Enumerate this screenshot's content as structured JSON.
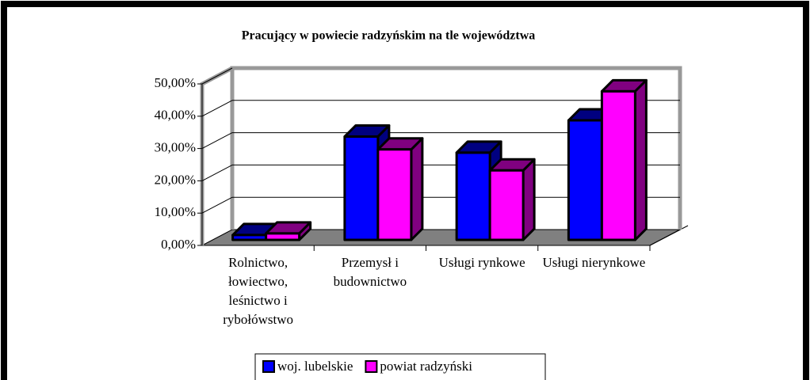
{
  "chart_data": {
    "type": "bar3d",
    "title": "Pracujący w powiecie radzyńskim na tle województwa",
    "categories": [
      "Rolnictwo, łowiectwo, leśnictwo i rybołówstwo",
      "Przemysł i budownictwo",
      "Usługi rynkowe",
      "Usługi nierynkowe"
    ],
    "series": [
      {
        "name": "woj. lubelskie",
        "color": "#0000ff",
        "side_color": "#000080",
        "values": [
          1.5,
          32,
          27,
          37
        ]
      },
      {
        "name": "powiat radzyński",
        "color": "#ff00ff",
        "side_color": "#800080",
        "values": [
          2,
          28,
          21.5,
          46
        ]
      }
    ],
    "ylim": [
      0,
      50
    ],
    "yticks": [
      {
        "value": 0,
        "label": "0,00%"
      },
      {
        "value": 10,
        "label": "10,00%"
      },
      {
        "value": 20,
        "label": "20,00%"
      },
      {
        "value": 30,
        "label": "30,00%"
      },
      {
        "value": 40,
        "label": "40,00%"
      },
      {
        "value": 50,
        "label": "50,00%"
      }
    ],
    "grid": true,
    "legend": "bottom"
  }
}
